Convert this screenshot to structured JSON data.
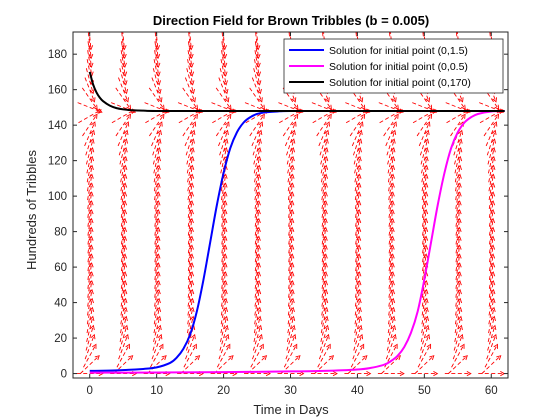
{
  "chart_data": {
    "type": "line",
    "title": "Direction Field for Brown Tribbles (b = 0.005)",
    "xlabel": "Time in Days",
    "ylabel": "Hundreds of Tribbles",
    "xlim": [
      -2.5,
      62.5
    ],
    "ylim": [
      -2.5,
      192.5
    ],
    "xticks": [
      0,
      10,
      20,
      30,
      40,
      50,
      60
    ],
    "yticks": [
      0,
      20,
      40,
      60,
      80,
      100,
      120,
      140,
      160,
      180
    ],
    "grid": false,
    "legend_position": "top-right",
    "direction_field": {
      "color": "#ff0000",
      "style": "dashed arrows",
      "t_grid": [
        0,
        5,
        10,
        15,
        20,
        25,
        30,
        35,
        40,
        45,
        50,
        55,
        60
      ],
      "p_grid": [
        0,
        5,
        10,
        15,
        20,
        25,
        30,
        35,
        40,
        45,
        50,
        55,
        60,
        65,
        70,
        75,
        80,
        85,
        90,
        95,
        100,
        105,
        110,
        115,
        120,
        125,
        130,
        135,
        140,
        145,
        150,
        155,
        160,
        165,
        170,
        175,
        180,
        185,
        190
      ]
    },
    "series": [
      {
        "name": "Solution for initial point (0,1.5)",
        "color": "#0000ff",
        "x": [
          0,
          4,
          8,
          10,
          12,
          13,
          14,
          15,
          16,
          17,
          18,
          19,
          20,
          21,
          22,
          23,
          24,
          25,
          26,
          28,
          30,
          40,
          50,
          62
        ],
        "y": [
          1.5,
          1.8,
          2.6,
          3.5,
          6,
          9,
          14,
          22,
          35,
          53,
          74,
          95,
          113,
          127,
          136,
          141.5,
          144.5,
          146.3,
          147.1,
          147.7,
          148,
          148,
          148,
          148
        ]
      },
      {
        "name": "Solution for initial point (0,0.5)",
        "color": "#ff00ff",
        "x": [
          0,
          10,
          20,
          30,
          35,
          40,
          42,
          44,
          45,
          46,
          47,
          48,
          49,
          50,
          51,
          52,
          53,
          54,
          55,
          56,
          57,
          58,
          60,
          62
        ],
        "y": [
          0.5,
          0.6,
          0.8,
          1.2,
          1.5,
          2.3,
          3.2,
          5,
          7,
          10,
          15,
          23,
          35,
          53,
          74,
          95,
          113,
          127,
          136,
          141.5,
          144.5,
          146.3,
          147.7,
          148
        ]
      },
      {
        "name": "Solution for initial point (0,170)",
        "color": "#000000",
        "x": [
          0,
          0.5,
          1,
          1.5,
          2,
          3,
          4,
          5,
          6,
          8,
          10,
          20,
          30,
          40,
          50,
          62
        ],
        "y": [
          170,
          163,
          158.5,
          155.5,
          153.5,
          151,
          149.6,
          148.9,
          148.5,
          148.2,
          148,
          148,
          148,
          148,
          148,
          148
        ]
      }
    ]
  }
}
